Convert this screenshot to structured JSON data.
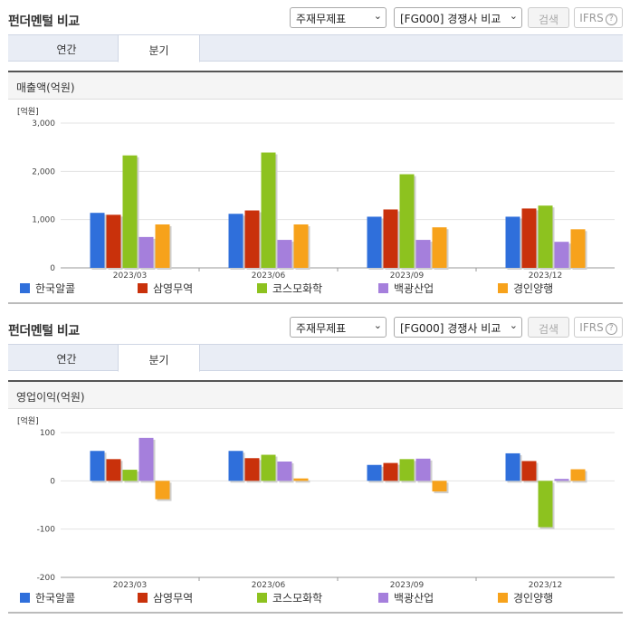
{
  "panels": [
    {
      "title": "펀더멘털 비교",
      "select_statement": "주재무제표",
      "select_compare": "[FG000] 경쟁사 비교",
      "search_label": "검색",
      "ifrs_label": "IFRS",
      "help_glyph": "?",
      "tab_annual": "연간",
      "tab_quarter": "분기",
      "section_title": "매출액(억원)"
    },
    {
      "title": "펀더멘털 비교",
      "select_statement": "주재무제표",
      "select_compare": "[FG000] 경쟁사 비교",
      "search_label": "검색",
      "ifrs_label": "IFRS",
      "help_glyph": "?",
      "tab_annual": "연간",
      "tab_quarter": "분기",
      "section_title": "영업이익(억원)"
    }
  ],
  "colors": {
    "한국알콜": "#2f6fdb",
    "삼영무역": "#c9310b",
    "코스모화학": "#8dc21f",
    "백광산업": "#a57fdc",
    "경인양행": "#f7a21b"
  },
  "chart_data": [
    {
      "type": "bar",
      "unit_label": "[억원]",
      "categories": [
        "2023/03",
        "2023/06",
        "2023/09",
        "2023/12"
      ],
      "ylim": [
        0,
        3000
      ],
      "yticks": [
        0,
        1000,
        2000,
        3000
      ],
      "ytick_labels": [
        "0",
        "1,000",
        "2,000",
        "3,000"
      ],
      "grid": true,
      "series": [
        {
          "name": "한국알콜",
          "values": [
            1140,
            1120,
            1060,
            1060
          ]
        },
        {
          "name": "삼영무역",
          "values": [
            1100,
            1190,
            1210,
            1230
          ]
        },
        {
          "name": "코스모화학",
          "values": [
            2330,
            2390,
            1940,
            1290
          ]
        },
        {
          "name": "백광산업",
          "values": [
            640,
            580,
            580,
            540
          ]
        },
        {
          "name": "경인양행",
          "values": [
            900,
            900,
            840,
            800
          ]
        }
      ]
    },
    {
      "type": "bar",
      "unit_label": "[억원]",
      "categories": [
        "2023/03",
        "2023/06",
        "2023/09",
        "2023/12"
      ],
      "ylim": [
        -200,
        100
      ],
      "yticks": [
        -200,
        -100,
        0,
        100
      ],
      "ytick_labels": [
        "-200",
        "-100",
        "0",
        "100"
      ],
      "grid": true,
      "series": [
        {
          "name": "한국알콜",
          "values": [
            62,
            62,
            33,
            57
          ]
        },
        {
          "name": "삼영무역",
          "values": [
            45,
            47,
            37,
            41
          ]
        },
        {
          "name": "코스모화학",
          "values": [
            23,
            54,
            45,
            -96
          ]
        },
        {
          "name": "백광산업",
          "values": [
            89,
            40,
            46,
            4
          ]
        },
        {
          "name": "경인양행",
          "values": [
            -38,
            5,
            -22,
            24
          ]
        }
      ]
    }
  ]
}
